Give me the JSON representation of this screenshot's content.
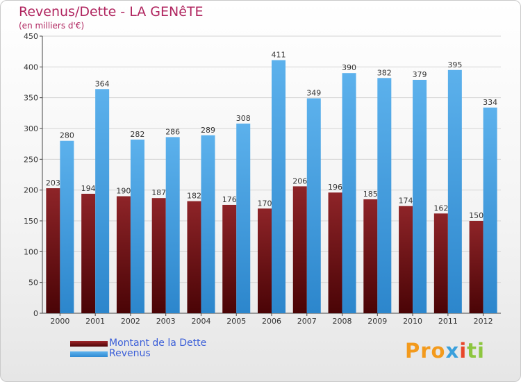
{
  "title": "Revenus/Dette - LA GENêTE",
  "subtitle": "(en milliers d'€)",
  "colors": {
    "dette": "#7a1216",
    "revenus": "#4aa3e3",
    "title": "#b0255f",
    "legend_text": "#3a5ed8"
  },
  "legend": {
    "items": [
      {
        "label": "Montant de la Dette",
        "color": "#7a1216"
      },
      {
        "label": "Revenus",
        "color": "#4aa3e3"
      }
    ]
  },
  "logo": {
    "text": "Proxiti",
    "part1": "Pro",
    "part2": "x",
    "part3": "i",
    "part4": "ti"
  },
  "chart_data": {
    "type": "bar",
    "title": "Revenus/Dette - LA GENêTE",
    "ylabel": "(en milliers d'€)",
    "xlabel": "",
    "ylim": [
      0,
      450
    ],
    "yticks": [
      0,
      50,
      100,
      150,
      200,
      250,
      300,
      350,
      400,
      450
    ],
    "grid": true,
    "categories": [
      "2000",
      "2001",
      "2002",
      "2003",
      "2004",
      "2005",
      "2006",
      "2007",
      "2008",
      "2009",
      "2010",
      "2011",
      "2012"
    ],
    "series": [
      {
        "name": "Montant de la Dette",
        "values": [
          203,
          194,
          190,
          187,
          182,
          176,
          170,
          206,
          196,
          185,
          174,
          162,
          150
        ]
      },
      {
        "name": "Revenus",
        "values": [
          280,
          364,
          282,
          286,
          289,
          308,
          411,
          349,
          390,
          382,
          379,
          395,
          334
        ]
      }
    ]
  }
}
